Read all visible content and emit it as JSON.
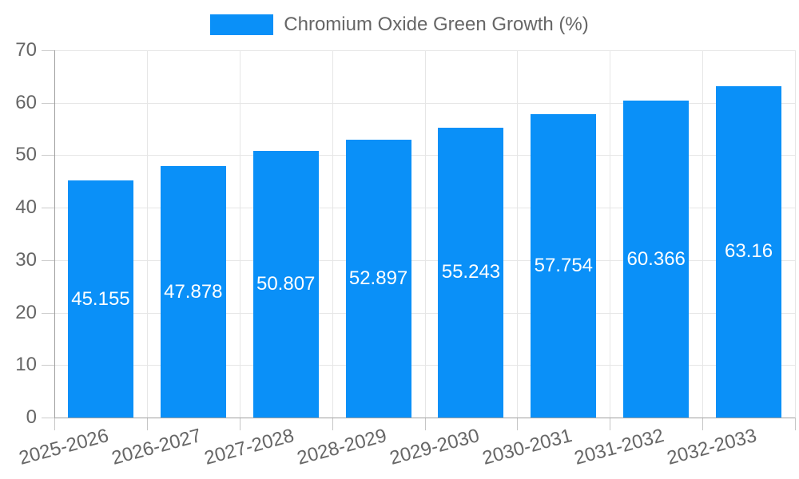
{
  "legend": {
    "label": "Chromium Oxide Green Growth (%)"
  },
  "colors": {
    "bar": "#0a90f8",
    "legend_text": "#666666",
    "tick_text": "#666666",
    "grid": "#e6e6e6",
    "axis": "#a0a0a0",
    "value_label": "#ffffff",
    "background": "#ffffff"
  },
  "chart_data": {
    "type": "bar",
    "title": "Chromium Oxide Green Growth (%)",
    "categories": [
      "2025-2026",
      "2026-2027",
      "2027-2028",
      "2028-2029",
      "2029-2030",
      "2030-2031",
      "2031-2032",
      "2032-2033"
    ],
    "values": [
      45.155,
      47.878,
      50.807,
      52.897,
      55.243,
      57.754,
      60.366,
      63.16
    ],
    "value_labels": [
      "45.155",
      "47.878",
      "50.807",
      "52.897",
      "55.243",
      "57.754",
      "60.366",
      "63.16"
    ],
    "xlabel": "",
    "ylabel": "",
    "ylim": [
      0,
      70
    ],
    "y_ticks": [
      0,
      10,
      20,
      30,
      40,
      50,
      60,
      70
    ],
    "grid": true,
    "legend_position": "top",
    "value_labels_position": "inside-center",
    "x_tick_rotation_deg": -15
  }
}
